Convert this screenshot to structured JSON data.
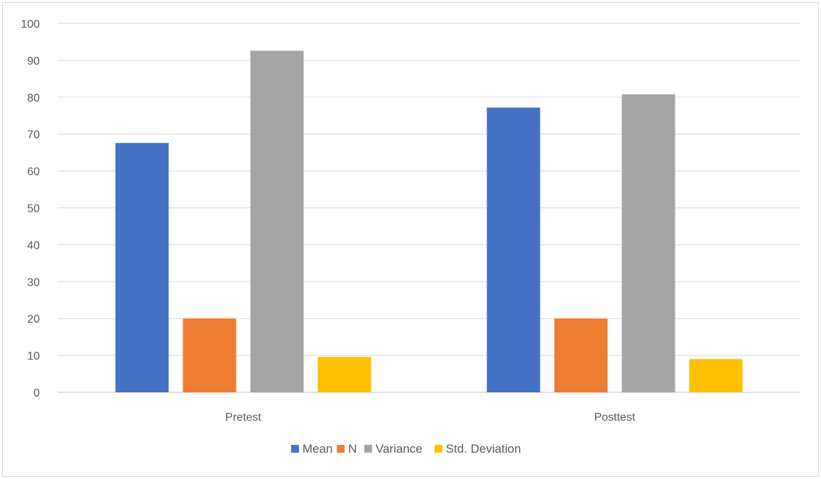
{
  "chart_data": {
    "type": "bar",
    "categories": [
      "Pretest",
      "Posttest"
    ],
    "series": [
      {
        "name": "Mean",
        "values": [
          67.6,
          77.2
        ],
        "color": "#4472c4"
      },
      {
        "name": "N",
        "values": [
          20,
          20
        ],
        "color": "#ed7d31"
      },
      {
        "name": "Variance",
        "values": [
          92.6,
          80.8
        ],
        "color": "#a5a5a5"
      },
      {
        "name": "Std. Deviation",
        "values": [
          9.6,
          9.0
        ],
        "color": "#ffc000"
      }
    ],
    "ylim": [
      0,
      100
    ],
    "yticks": [
      "0",
      "10",
      "20",
      "30",
      "40",
      "50",
      "60",
      "70",
      "80",
      "90",
      "100"
    ],
    "grid": true,
    "legend_position": "bottom",
    "title": "",
    "xlabel": "",
    "ylabel": ""
  }
}
